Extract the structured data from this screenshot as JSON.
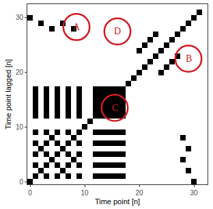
{
  "chart_data": {
    "type": "heatmap",
    "xlabel": "Time point [n]",
    "ylabel": "Time point lagged [n]",
    "color": "#000000",
    "grid": false,
    "xlim": [
      -0.5,
      32.5
    ],
    "ylim": [
      -0.5,
      32.5
    ],
    "xticks": [
      0,
      10,
      20,
      30
    ],
    "yticks": [
      0,
      10,
      20,
      30
    ],
    "annotations": [
      {
        "text": "A",
        "x": 8.5,
        "y": 28.3
      },
      {
        "text": "B",
        "x": 29,
        "y": 22.5
      },
      {
        "text": "C",
        "x": 15.5,
        "y": 13.5
      },
      {
        "text": "D",
        "x": 16,
        "y": 27.5
      }
    ],
    "cells": [
      [
        1,
        0,
        0,
        0,
        0,
        0,
        0,
        0,
        0,
        0,
        0,
        0,
        0,
        0,
        0,
        0,
        0,
        0,
        0,
        0,
        0,
        0,
        0,
        0,
        0,
        0,
        0,
        0,
        0,
        0,
        1,
        0
      ],
      [
        0,
        1,
        0,
        1,
        0,
        1,
        0,
        1,
        0,
        1,
        0,
        0,
        1,
        1,
        1,
        1,
        1,
        1,
        0,
        0,
        0,
        0,
        0,
        0,
        0,
        0,
        0,
        0,
        0,
        0,
        0,
        0
      ],
      [
        0,
        0,
        1,
        0,
        0,
        0,
        1,
        0,
        0,
        0,
        0,
        0,
        0,
        0,
        0,
        0,
        0,
        0,
        0,
        0,
        0,
        0,
        0,
        0,
        0,
        0,
        0,
        0,
        0,
        1,
        0,
        0
      ],
      [
        0,
        1,
        0,
        1,
        0,
        1,
        0,
        1,
        0,
        1,
        0,
        0,
        1,
        1,
        1,
        1,
        1,
        1,
        0,
        0,
        0,
        0,
        0,
        0,
        0,
        0,
        0,
        0,
        0,
        0,
        0,
        0
      ],
      [
        0,
        0,
        0,
        0,
        1,
        0,
        0,
        0,
        1,
        0,
        0,
        0,
        0,
        0,
        0,
        0,
        0,
        0,
        0,
        0,
        0,
        0,
        0,
        0,
        0,
        0,
        0,
        0,
        1,
        0,
        0,
        0
      ],
      [
        0,
        1,
        0,
        1,
        0,
        1,
        0,
        1,
        0,
        1,
        0,
        0,
        1,
        1,
        1,
        1,
        1,
        1,
        0,
        0,
        0,
        0,
        0,
        0,
        0,
        0,
        0,
        0,
        0,
        0,
        0,
        0
      ],
      [
        0,
        0,
        1,
        0,
        0,
        0,
        1,
        0,
        0,
        0,
        0,
        0,
        0,
        0,
        0,
        0,
        0,
        0,
        0,
        0,
        0,
        0,
        0,
        0,
        0,
        0,
        0,
        0,
        0,
        1,
        0,
        0
      ],
      [
        0,
        1,
        0,
        1,
        0,
        1,
        0,
        1,
        0,
        1,
        0,
        0,
        1,
        1,
        1,
        1,
        1,
        1,
        0,
        0,
        0,
        0,
        0,
        0,
        0,
        0,
        0,
        0,
        0,
        0,
        0,
        0
      ],
      [
        0,
        0,
        0,
        0,
        1,
        0,
        0,
        0,
        1,
        0,
        0,
        0,
        0,
        0,
        0,
        0,
        0,
        0,
        0,
        0,
        0,
        0,
        0,
        0,
        0,
        0,
        0,
        0,
        1,
        0,
        0,
        0
      ],
      [
        0,
        1,
        0,
        1,
        0,
        1,
        0,
        1,
        0,
        1,
        0,
        0,
        1,
        1,
        1,
        1,
        1,
        1,
        0,
        0,
        0,
        0,
        0,
        0,
        0,
        0,
        0,
        0,
        0,
        0,
        0,
        0
      ],
      [
        0,
        0,
        0,
        0,
        0,
        0,
        0,
        0,
        0,
        0,
        1,
        0,
        0,
        0,
        0,
        0,
        0,
        0,
        0,
        0,
        0,
        0,
        0,
        0,
        0,
        0,
        0,
        0,
        0,
        0,
        0,
        0
      ],
      [
        0,
        0,
        0,
        0,
        0,
        0,
        0,
        0,
        0,
        0,
        0,
        1,
        0,
        0,
        0,
        0,
        0,
        0,
        0,
        0,
        0,
        0,
        0,
        0,
        0,
        0,
        0,
        0,
        0,
        0,
        0,
        0
      ],
      [
        0,
        1,
        0,
        1,
        0,
        1,
        0,
        1,
        0,
        1,
        0,
        0,
        1,
        1,
        1,
        1,
        1,
        1,
        0,
        0,
        0,
        0,
        0,
        0,
        0,
        0,
        0,
        0,
        0,
        0,
        0,
        0
      ],
      [
        0,
        1,
        0,
        1,
        0,
        1,
        0,
        1,
        0,
        1,
        0,
        0,
        1,
        1,
        1,
        1,
        1,
        1,
        0,
        0,
        0,
        0,
        0,
        0,
        0,
        0,
        0,
        0,
        0,
        0,
        0,
        0
      ],
      [
        0,
        1,
        0,
        1,
        0,
        1,
        0,
        1,
        0,
        1,
        0,
        0,
        1,
        1,
        1,
        1,
        1,
        1,
        0,
        0,
        0,
        0,
        0,
        0,
        0,
        0,
        0,
        0,
        0,
        0,
        0,
        0
      ],
      [
        0,
        1,
        0,
        1,
        0,
        1,
        0,
        1,
        0,
        1,
        0,
        0,
        1,
        1,
        1,
        1,
        1,
        1,
        0,
        0,
        0,
        0,
        0,
        0,
        0,
        0,
        0,
        0,
        0,
        0,
        0,
        0
      ],
      [
        0,
        1,
        0,
        1,
        0,
        1,
        0,
        1,
        0,
        1,
        0,
        0,
        1,
        1,
        1,
        1,
        1,
        1,
        0,
        0,
        0,
        0,
        0,
        0,
        0,
        0,
        0,
        0,
        0,
        0,
        0,
        0
      ],
      [
        0,
        1,
        0,
        1,
        0,
        1,
        0,
        1,
        0,
        1,
        0,
        0,
        1,
        1,
        1,
        1,
        1,
        1,
        0,
        0,
        0,
        0,
        0,
        0,
        0,
        0,
        0,
        0,
        0,
        0,
        0,
        0
      ],
      [
        0,
        0,
        0,
        0,
        0,
        0,
        0,
        0,
        0,
        0,
        0,
        0,
        0,
        0,
        0,
        0,
        0,
        0,
        1,
        0,
        0,
        0,
        0,
        0,
        0,
        0,
        0,
        0,
        0,
        0,
        0,
        0
      ],
      [
        0,
        0,
        0,
        0,
        0,
        0,
        0,
        0,
        0,
        0,
        0,
        0,
        0,
        0,
        0,
        0,
        0,
        0,
        0,
        1,
        0,
        0,
        0,
        0,
        0,
        0,
        0,
        0,
        0,
        0,
        0,
        0
      ],
      [
        0,
        0,
        0,
        0,
        0,
        0,
        0,
        0,
        0,
        0,
        0,
        0,
        0,
        0,
        0,
        0,
        0,
        0,
        0,
        0,
        1,
        0,
        0,
        0,
        1,
        0,
        0,
        0,
        0,
        0,
        0,
        0
      ],
      [
        0,
        0,
        0,
        0,
        0,
        0,
        0,
        0,
        0,
        0,
        0,
        0,
        0,
        0,
        0,
        0,
        0,
        0,
        0,
        0,
        0,
        1,
        0,
        0,
        0,
        1,
        0,
        0,
        0,
        0,
        0,
        0
      ],
      [
        0,
        0,
        0,
        0,
        0,
        0,
        0,
        0,
        0,
        0,
        0,
        0,
        0,
        0,
        0,
        0,
        0,
        0,
        0,
        0,
        0,
        0,
        1,
        0,
        0,
        0,
        1,
        0,
        0,
        0,
        0,
        0
      ],
      [
        0,
        0,
        0,
        0,
        0,
        0,
        0,
        0,
        0,
        0,
        0,
        0,
        0,
        0,
        0,
        0,
        0,
        0,
        0,
        0,
        0,
        0,
        0,
        1,
        0,
        0,
        0,
        1,
        0,
        0,
        0,
        0
      ],
      [
        0,
        0,
        0,
        0,
        0,
        0,
        0,
        0,
        0,
        0,
        0,
        0,
        0,
        0,
        0,
        0,
        0,
        0,
        0,
        0,
        1,
        0,
        0,
        0,
        1,
        0,
        0,
        0,
        0,
        0,
        0,
        0
      ],
      [
        0,
        0,
        0,
        0,
        0,
        0,
        0,
        0,
        0,
        0,
        0,
        0,
        0,
        0,
        0,
        0,
        0,
        0,
        0,
        0,
        0,
        1,
        0,
        0,
        0,
        1,
        0,
        0,
        0,
        0,
        0,
        0
      ],
      [
        0,
        0,
        0,
        0,
        0,
        0,
        0,
        0,
        0,
        0,
        0,
        0,
        0,
        0,
        0,
        0,
        0,
        0,
        0,
        0,
        0,
        0,
        1,
        0,
        0,
        0,
        1,
        0,
        0,
        0,
        0,
        0
      ],
      [
        0,
        0,
        0,
        0,
        0,
        0,
        0,
        0,
        0,
        0,
        0,
        0,
        0,
        0,
        0,
        0,
        0,
        0,
        0,
        0,
        0,
        0,
        0,
        1,
        0,
        0,
        0,
        1,
        0,
        0,
        0,
        0
      ],
      [
        0,
        0,
        0,
        0,
        1,
        0,
        0,
        0,
        1,
        0,
        0,
        0,
        0,
        0,
        0,
        0,
        0,
        0,
        0,
        0,
        0,
        0,
        0,
        0,
        0,
        0,
        0,
        0,
        1,
        0,
        0,
        0
      ],
      [
        0,
        0,
        1,
        0,
        0,
        0,
        1,
        0,
        0,
        0,
        0,
        0,
        0,
        0,
        0,
        0,
        0,
        0,
        0,
        0,
        0,
        0,
        0,
        0,
        0,
        0,
        0,
        0,
        0,
        1,
        0,
        0
      ],
      [
        1,
        0,
        0,
        0,
        0,
        0,
        0,
        0,
        0,
        0,
        0,
        0,
        0,
        0,
        0,
        0,
        0,
        0,
        0,
        0,
        0,
        0,
        0,
        0,
        0,
        0,
        0,
        0,
        0,
        0,
        1,
        0
      ],
      [
        0,
        0,
        0,
        0,
        0,
        0,
        0,
        0,
        0,
        0,
        0,
        0,
        0,
        0,
        0,
        0,
        0,
        0,
        0,
        0,
        0,
        0,
        0,
        0,
        0,
        0,
        0,
        0,
        0,
        0,
        0,
        1
      ]
    ]
  }
}
